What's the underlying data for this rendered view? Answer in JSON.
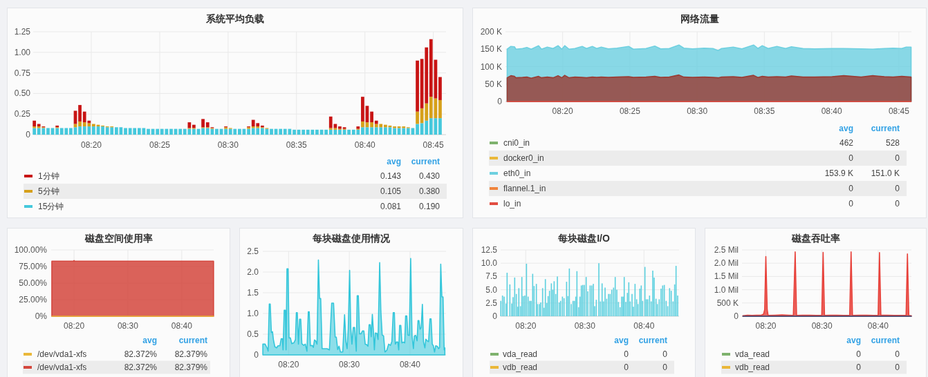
{
  "chart_data": [
    {
      "type": "bar",
      "stacked": true,
      "title": "系统平均负载",
      "xlim": [
        8.2625,
        8.7655
      ],
      "xticks": [
        {
          "value": 8.3333,
          "label": "08:20"
        },
        {
          "value": 8.4167,
          "label": "08:25"
        },
        {
          "value": 8.5,
          "label": "08:30"
        },
        {
          "value": 8.5833,
          "label": "08:35"
        },
        {
          "value": 8.6667,
          "label": "08:40"
        },
        {
          "value": 8.75,
          "label": "08:45"
        }
      ],
      "ylim": [
        0,
        1.25
      ],
      "yticks": [
        0,
        0.25,
        {
          "value": 0.5,
          "label": "0.50"
        },
        0.75,
        {
          "value": 1,
          "label": "1.00"
        },
        1.25
      ],
      "grid": true,
      "legend": "bottom",
      "x": [
        8.2639,
        8.2694,
        8.275,
        8.2806,
        8.2861,
        8.2917,
        8.2972,
        8.3028,
        8.3083,
        8.3139,
        8.3194,
        8.325,
        8.3306,
        8.3361,
        8.3417,
        8.3472,
        8.3528,
        8.3583,
        8.3639,
        8.3694,
        8.375,
        8.3806,
        8.3861,
        8.3917,
        8.3972,
        8.4028,
        8.4083,
        8.4139,
        8.4194,
        8.425,
        8.4306,
        8.4361,
        8.4417,
        8.4472,
        8.4528,
        8.4583,
        8.4639,
        8.4694,
        8.475,
        8.4806,
        8.4861,
        8.4917,
        8.4972,
        8.5028,
        8.5083,
        8.5139,
        8.5194,
        8.525,
        8.5306,
        8.5361,
        8.5417,
        8.5472,
        8.5528,
        8.5583,
        8.5639,
        8.5694,
        8.575,
        8.5806,
        8.5861,
        8.5917,
        8.5972,
        8.6028,
        8.6083,
        8.6139,
        8.6194,
        8.625,
        8.6306,
        8.6361,
        8.6417,
        8.6472,
        8.6528,
        8.6583,
        8.6639,
        8.6694,
        8.675,
        8.6806,
        8.6861,
        8.6917,
        8.6972,
        8.7028,
        8.7083,
        8.7139,
        8.7194,
        8.725,
        8.7306,
        8.7361,
        8.7417,
        8.7472,
        8.7528,
        8.7583
      ],
      "series": [
        {
          "name": "15分钟",
          "color": "#45c8dc",
          "values": [
            0.08,
            0.08,
            0.08,
            0.08,
            0.08,
            0.08,
            0.08,
            0.08,
            0.08,
            0.09,
            0.1,
            0.1,
            0.1,
            0.1,
            0.1,
            0.1,
            0.09,
            0.09,
            0.09,
            0.09,
            0.08,
            0.08,
            0.08,
            0.08,
            0.08,
            0.07,
            0.07,
            0.07,
            0.07,
            0.07,
            0.07,
            0.07,
            0.07,
            0.07,
            0.07,
            0.07,
            0.07,
            0.08,
            0.08,
            0.07,
            0.07,
            0.07,
            0.07,
            0.07,
            0.07,
            0.07,
            0.07,
            0.07,
            0.08,
            0.08,
            0.08,
            0.07,
            0.07,
            0.07,
            0.07,
            0.07,
            0.07,
            0.06,
            0.06,
            0.06,
            0.06,
            0.06,
            0.06,
            0.06,
            0.06,
            0.06,
            0.06,
            0.06,
            0.06,
            0.06,
            0.06,
            0.06,
            0.09,
            0.09,
            0.09,
            0.09,
            0.09,
            0.09,
            0.09,
            0.08,
            0.08,
            0.08,
            0.08,
            0.08,
            0.13,
            0.14,
            0.17,
            0.2,
            0.2,
            0.2
          ]
        },
        {
          "name": "5分钟",
          "color": "#d6a01a",
          "values": [
            0.02,
            0.02,
            0.01,
            null,
            null,
            0.01,
            null,
            null,
            null,
            0.04,
            0.06,
            0.05,
            0.04,
            0.03,
            0.02,
            0.01,
            0.01,
            0.01,
            null,
            null,
            null,
            null,
            null,
            null,
            null,
            null,
            null,
            null,
            null,
            null,
            null,
            null,
            null,
            null,
            0.01,
            0.01,
            null,
            0.01,
            0.01,
            0.01,
            null,
            null,
            0.02,
            0.01,
            null,
            null,
            null,
            0.02,
            0.02,
            0.02,
            0.01,
            0.01,
            null,
            null,
            null,
            null,
            null,
            null,
            null,
            null,
            null,
            null,
            null,
            null,
            null,
            0.02,
            0.02,
            0.01,
            0.01,
            null,
            null,
            0.01,
            0.07,
            0.06,
            0.06,
            0.04,
            0.04,
            0.03,
            0.02,
            0.02,
            0.02,
            0.02,
            0.01,
            null,
            0.15,
            0.18,
            0.21,
            0.26,
            0.24,
            0.22
          ]
        },
        {
          "name": "1分钟",
          "color": "#c81414",
          "values": [
            0.07,
            0.03,
            0.01,
            null,
            null,
            0.02,
            null,
            null,
            null,
            0.16,
            0.2,
            0.13,
            0.03,
            null,
            null,
            null,
            null,
            null,
            null,
            null,
            null,
            null,
            null,
            null,
            null,
            null,
            null,
            null,
            null,
            null,
            null,
            null,
            null,
            null,
            0.07,
            0.04,
            null,
            0.1,
            0.06,
            0.01,
            null,
            null,
            0.01,
            null,
            null,
            null,
            null,
            0.01,
            0.08,
            0.04,
            0.02,
            null,
            null,
            null,
            null,
            null,
            null,
            null,
            null,
            null,
            null,
            null,
            null,
            null,
            null,
            0.14,
            0.05,
            0.03,
            0.02,
            null,
            null,
            0.03,
            0.3,
            0.2,
            0.13,
            0.04,
            null,
            null,
            null,
            null,
            null,
            null,
            null,
            null,
            0.62,
            0.6,
            0.68,
            0.7,
            0.47,
            0.28
          ]
        }
      ],
      "annotations": [
        "avg",
        "current",
        "0.143",
        "0.430",
        "0.105",
        "0.380",
        "0.081",
        "0.190"
      ]
    },
    {
      "type": "area",
      "title": "网络流量",
      "xlim": [
        8.2625,
        8.7655
      ],
      "xticks": [
        {
          "value": 8.3333,
          "label": "08:20"
        },
        {
          "value": 8.4167,
          "label": "08:25"
        },
        {
          "value": 8.5,
          "label": "08:30"
        },
        {
          "value": 8.5833,
          "label": "08:35"
        },
        {
          "value": 8.6667,
          "label": "08:40"
        },
        {
          "value": 8.75,
          "label": "08:45"
        }
      ],
      "ylim": [
        0,
        200000
      ],
      "yticks": [
        0,
        {
          "value": 50000,
          "label": "50 K"
        },
        {
          "value": 100000,
          "label": "100 K"
        },
        {
          "value": 150000,
          "label": "150 K"
        },
        {
          "value": 200000,
          "label": "200 K"
        }
      ],
      "grid": true,
      "legend": "bottom",
      "series": [
        {
          "name": "cni0_in",
          "color": "#7eb26d",
          "type": "line"
        },
        {
          "name": "docker0_in",
          "color": "#eab839",
          "type": "line"
        },
        {
          "name": "eth0_in",
          "color": "#6ed0e0",
          "x": [
            8.2646,
            8.2692,
            8.2736,
            8.2754,
            8.2836,
            8.289,
            8.2944,
            8.3035,
            8.3071,
            8.3143,
            8.3215,
            8.3276,
            8.3323,
            8.3359,
            8.3413,
            8.3485,
            8.3575,
            8.3629,
            8.3701,
            8.3755,
            8.3812,
            8.3899,
            8.4007,
            8.4151,
            8.4209,
            8.4367,
            8.4475,
            8.4547,
            8.4655,
            8.4774,
            8.4835,
            8.4943,
            8.5087,
            8.5195,
            8.526,
            8.5303,
            8.5447,
            8.5555,
            8.5699,
            8.5753,
            8.5807,
            8.588,
            8.5988,
            8.6096,
            8.6168,
            8.6312,
            8.6456,
            8.6672,
            8.6816,
            8.7032,
            8.7176,
            8.732,
            8.7428,
            8.7536,
            8.759,
            8.7651
          ],
          "values": [
            150000,
            158000,
            157000,
            150000,
            152000,
            155000,
            150000,
            160000,
            150000,
            156000,
            152000,
            160000,
            150000,
            160000,
            150000,
            152000,
            158000,
            152000,
            158000,
            152000,
            156000,
            151000,
            153000,
            158000,
            150000,
            152000,
            159000,
            151000,
            152000,
            162000,
            153000,
            151000,
            153000,
            152000,
            146000,
            152000,
            156000,
            151000,
            162000,
            152000,
            160000,
            152000,
            158000,
            152000,
            157000,
            152000,
            151000,
            152000,
            152000,
            151000,
            150000,
            152000,
            153000,
            152000,
            156000,
            156000
          ]
        },
        {
          "name": "flannel.1_in",
          "color": "#ef843c",
          "type": "line"
        },
        {
          "color": "#9a3d35",
          "x": [
            8.2646,
            8.2692,
            8.2736,
            8.2754,
            8.2836,
            8.289,
            8.2944,
            8.3035,
            8.3071,
            8.3143,
            8.3215,
            8.3276,
            8.3323,
            8.3359,
            8.3413,
            8.3485,
            8.3575,
            8.3629,
            8.3701,
            8.3755,
            8.3812,
            8.3899,
            8.4007,
            8.4151,
            8.4209,
            8.4367,
            8.4475,
            8.4547,
            8.4655,
            8.4774,
            8.4835,
            8.4943,
            8.5087,
            8.5195,
            8.526,
            8.5303,
            8.5447,
            8.5555,
            8.5699,
            8.5753,
            8.5807,
            8.588,
            8.5988,
            8.6096,
            8.6168,
            8.6312,
            8.6456,
            8.6672,
            8.6816,
            8.7032,
            8.7176,
            8.732,
            8.7428,
            8.7536,
            8.759,
            8.7651
          ],
          "values": [
            68000,
            74000,
            72000,
            68000,
            69000,
            70000,
            67000,
            72000,
            68000,
            70000,
            68000,
            74000,
            68000,
            75000,
            68000,
            70000,
            69000,
            68000,
            70000,
            69000,
            70000,
            69000,
            70000,
            71000,
            69000,
            70000,
            72000,
            69000,
            70000,
            76000,
            70000,
            69000,
            70000,
            69000,
            68000,
            70000,
            71000,
            69000,
            75000,
            69000,
            72000,
            70000,
            71000,
            70000,
            73000,
            70000,
            70000,
            71000,
            74000,
            70000,
            74000,
            71000,
            70000,
            72000,
            71000,
            70000
          ]
        },
        {
          "name": "lo_in",
          "color": "#e24d42",
          "type": "line",
          "x": [
            8.2646,
            8.7651
          ],
          "values": [
            0,
            0
          ]
        }
      ],
      "annotations": [
        "avg",
        "current",
        "462",
        "528",
        "0",
        "0",
        "153.9 K",
        "151.0 K",
        "0",
        "0",
        "0",
        "0"
      ]
    },
    {
      "type": "area",
      "title": "磁盘空间使用率",
      "xlim": [
        8.2625,
        8.7655
      ],
      "xticks": [
        {
          "value": 8.3333,
          "label": "08:20"
        },
        {
          "value": 8.5,
          "label": "08:30"
        },
        {
          "value": 8.6667,
          "label": "08:40"
        }
      ],
      "ylim": [
        0,
        100
      ],
      "yticks": [
        {
          "value": 0,
          "label": "0%"
        },
        {
          "value": 25,
          "label": "25.00%"
        },
        {
          "value": 50,
          "label": "50.00%"
        },
        {
          "value": 75,
          "label": "75.00%"
        },
        {
          "value": 100,
          "label": "100.00%"
        }
      ],
      "grid": true,
      "legend": "bottom",
      "series": [
        {
          "name": "/dev/vda1-xfs",
          "color": "#eab839",
          "type": "line",
          "x": [
            8.2646,
            8.7651
          ],
          "values": [
            0,
            0
          ]
        },
        {
          "name": "/dev/vda1-xfs",
          "color": "#d4473d",
          "x": [
            8.2646,
            8.3306,
            8.3333,
            8.3361,
            8.7651
          ],
          "values": [
            83,
            83,
            84,
            83,
            83
          ]
        }
      ],
      "annotations": [
        "avg",
        "current",
        "82.372%",
        "82.379%",
        "82.372%",
        "82.379%"
      ]
    },
    {
      "type": "area",
      "title": "每块磁盘使用情况",
      "xlim": [
        8.2625,
        8.7655
      ],
      "xticks": [
        {
          "value": 8.3333,
          "label": "08:20"
        },
        {
          "value": 8.5,
          "label": "08:30"
        },
        {
          "value": 8.6667,
          "label": "08:40"
        }
      ],
      "ylim": [
        0,
        2.5
      ],
      "yticks": [
        0,
        0.5,
        {
          "value": 1,
          "label": "1.0"
        },
        1.5,
        {
          "value": 2,
          "label": "2.0"
        },
        2.5
      ],
      "grid": true,
      "x": [
        8.2627,
        8.269,
        8.2753,
        8.2772,
        8.2804,
        8.2829,
        8.286,
        8.2892,
        8.2917,
        8.2955,
        8.3005,
        8.3043,
        8.3094,
        8.3131,
        8.3163,
        8.3182,
        8.3213,
        8.3245,
        8.3264,
        8.3289,
        8.332,
        8.3346,
        8.3383,
        8.3421,
        8.3478,
        8.3522,
        8.3547,
        8.3572,
        8.3604,
        8.3635,
        8.3667,
        8.3698,
        8.3749,
        8.3793,
        8.3837,
        8.3875,
        8.39,
        8.3932,
        8.3982,
        8.4013,
        8.4045,
        8.4076,
        8.4114,
        8.4152,
        8.4184,
        8.4215,
        8.4253,
        8.4328,
        8.4391,
        8.4454,
        8.4517,
        8.4568,
        8.4612,
        8.4643,
        8.4681,
        8.4719,
        8.4757,
        8.482,
        8.487,
        8.4908,
        8.494,
        8.4971,
        8.5009,
        8.504,
        8.5072,
        8.511,
        8.5147,
        8.5192,
        8.5217,
        8.5248,
        8.528,
        8.5324,
        8.5362,
        8.5399,
        8.5437,
        8.5475,
        8.5513,
        8.5544,
        8.5576,
        8.5601,
        8.5633,
        8.5664,
        8.5689,
        8.5714,
        8.5759,
        8.579,
        8.5834,
        8.5866,
        8.5903,
        8.5941,
        8.5979,
        8.6029,
        8.608,
        8.613,
        8.6168,
        8.6206,
        8.6237,
        8.6263,
        8.6294,
        8.6332,
        8.6357,
        8.6382,
        8.6414,
        8.6445,
        8.6483,
        8.6521,
        8.6546,
        8.6578,
        8.6609,
        8.6647,
        8.6685,
        8.6722,
        8.676,
        8.6785,
        8.6823,
        8.6861,
        8.6886,
        8.6911,
        8.6943,
        8.6974,
        8.7006,
        8.7037,
        8.7075,
        8.71,
        8.7138,
        8.7176,
        8.7214,
        8.7245,
        8.7277,
        8.7308,
        8.734,
        8.7371,
        8.7415,
        8.7453,
        8.7478,
        8.751,
        8.7541,
        8.7573,
        8.7604,
        8.7623
      ],
      "series": [
        {
          "color": "#33c6da",
          "values": [
            0.26,
            0.26,
            0.15,
            0.09,
            1.23,
            1.23,
            0.54,
            0.56,
            0.37,
            0.2,
            0.17,
            0.22,
            0.22,
            0.39,
            0.39,
            0.12,
            1.08,
            1.08,
            0.12,
            2.08,
            2.08,
            0.41,
            0.41,
            0.27,
            0.29,
            0.37,
            1.02,
            1.02,
            0.26,
            0.86,
            0.86,
            0.27,
            0.23,
            0.26,
            0.09,
            1.04,
            1.04,
            0.22,
            0.23,
            0.18,
            0.36,
            0.34,
            0.26,
            2.29,
            1.36,
            1.36,
            0.15,
            0.15,
            0.15,
            0.12,
            1.25,
            1.25,
            0.43,
            0.43,
            0.13,
            0.21,
            0.07,
            0.07,
            0.97,
            0.32,
            0.15,
            0.62,
            2.04,
            0.66,
            0.26,
            0.66,
            0.66,
            0.09,
            1.43,
            1.43,
            0.51,
            0.51,
            0.58,
            0.58,
            0.26,
            0.25,
            0.21,
            0.73,
            0.73,
            0.44,
            0.98,
            0.54,
            0.12,
            0.53,
            0.52,
            0.37,
            2.23,
            1.06,
            0.48,
            0.46,
            0.07,
            0.11,
            0.26,
            0.23,
            0.32,
            1.02,
            1.02,
            0.26,
            0.31,
            0.31,
            0.12,
            0.71,
            0.71,
            0.29,
            0.31,
            0.29,
            0.94,
            0.94,
            0.48,
            0.47,
            2.33,
            0.46,
            0.15,
            0.46,
            0.47,
            0.34,
            0.83,
            0.83,
            0.62,
            0.66,
            1.22,
            0.32,
            0.17,
            0.38,
            0.34,
            0.32,
            0.87,
            0.87,
            0.26,
            0.22,
            0.07,
            0.22,
            0.21,
            0.15,
            0.18,
            2.19,
            1.4,
            1.4,
            0.12,
            0.17
          ]
        }
      ]
    },
    {
      "type": "bar",
      "title": "每块磁盘I/O",
      "xlim": [
        8.2625,
        8.7655
      ],
      "xticks": [
        {
          "value": 8.3333,
          "label": "08:20"
        },
        {
          "value": 8.5,
          "label": "08:30"
        },
        {
          "value": 8.6667,
          "label": "08:40"
        }
      ],
      "ylim": [
        0,
        12.5
      ],
      "yticks": [
        0,
        2.5,
        {
          "value": 5,
          "label": "5.0"
        },
        7.5,
        {
          "value": 10,
          "label": "10.0"
        },
        12.5
      ],
      "grid": true,
      "legend": "bottom",
      "series": [
        {
          "name": "vda_read",
          "color": "#7eb26d"
        },
        {
          "name": "vdb_read",
          "color": "#eab839"
        },
        {
          "color": "#5dd0df",
          "x": [
            8.263,
            8.2677,
            8.2722,
            8.2775,
            8.2807,
            8.2885,
            8.2937,
            8.2976,
            8.3021,
            8.3067,
            8.3106,
            8.3138,
            8.3184,
            8.3223,
            8.3262,
            8.3307,
            8.3353,
            8.3399,
            8.3444,
            8.3483,
            8.3528,
            8.3567,
            8.3632,
            8.3665,
            8.3717,
            8.3756,
            8.3808,
            8.3847,
            8.3886,
            8.3925,
            8.3964,
            8.4003,
            8.4055,
            8.4094,
            8.4133,
            8.4178,
            8.4224,
            8.4276,
            8.4315,
            8.4367,
            8.4412,
            8.4484,
            8.4523,
            8.4562,
            8.4614,
            8.4666,
            8.4705,
            8.4744,
            8.4776,
            8.4822,
            8.4861,
            8.49,
            8.4939,
            8.4984,
            8.5036,
            8.5082,
            8.5147,
            8.5192,
            8.5238,
            8.5277,
            8.5322,
            8.5394,
            8.5439,
            8.5485,
            8.5524,
            8.5569,
            8.5615,
            8.5667,
            8.5712,
            8.5758,
            8.5809,
            8.5855,
            8.59,
            8.5946,
            8.5992,
            8.6037,
            8.6076,
            8.6109,
            8.6154,
            8.6199,
            8.6238,
            8.6277,
            8.6329,
            8.6368,
            8.6414,
            8.6459,
            8.6498,
            8.655,
            8.6589,
            8.6628,
            8.6693,
            8.6732,
            8.6771,
            8.6823,
            8.6869,
            8.6914,
            8.6953,
            8.7005,
            8.7044,
            8.7096,
            8.7148,
            8.7193,
            8.7239,
            8.7291,
            8.7336,
            8.7388,
            8.7434,
            8.7486,
            8.7531,
            8.757,
            8.7616
          ],
          "values": [
            2.9,
            3.9,
            3.7,
            2.4,
            8.2,
            6.0,
            2.4,
            3.6,
            7.3,
            4.2,
            1.8,
            5.3,
            1.9,
            7.4,
            3.8,
            3.9,
            9.9,
            3.7,
            2.9,
            2.9,
            8.0,
            5.7,
            6.1,
            2.3,
            2.3,
            2.6,
            5.3,
            1.6,
            7.0,
            2.5,
            3.8,
            4.8,
            6.2,
            5.0,
            6.6,
            4.2,
            7.5,
            2.6,
            2.9,
            3.7,
            3.4,
            6.5,
            3.8,
            9.0,
            2.3,
            2.9,
            2.9,
            3.7,
            8.5,
            1.7,
            3.7,
            5.8,
            5.9,
            5.9,
            7.4,
            4.7,
            5.8,
            5.8,
            6.1,
            1.9,
            3.1,
            10.0,
            2.8,
            6.2,
            2.8,
            5.4,
            3.3,
            4.2,
            4.2,
            5.0,
            5.4,
            7.4,
            5.0,
            2.7,
            1.7,
            3.7,
            3.7,
            7.4,
            2.7,
            4.4,
            6.4,
            2.8,
            4.2,
            1.8,
            6.1,
            3.2,
            2.3,
            5.2,
            5.8,
            2.9,
            9.3,
            3.2,
            3.2,
            3.9,
            2.8,
            8.6,
            7.3,
            3.3,
            2.3,
            3.2,
            5.2,
            5.8,
            5.9,
            2.9,
            1.9,
            5.3,
            4.8,
            2.8,
            6.0,
            9.5,
            3.9
          ]
        }
      ],
      "annotations": [
        "avg",
        "current",
        "0",
        "0",
        "0",
        "0"
      ]
    },
    {
      "type": "area",
      "title": "磁盘吞吐率",
      "xlim": [
        8.2625,
        8.7655
      ],
      "xticks": [
        {
          "value": 8.3333,
          "label": "08:20"
        },
        {
          "value": 8.5,
          "label": "08:30"
        },
        {
          "value": 8.6667,
          "label": "08:40"
        }
      ],
      "ylim": [
        0,
        2.5
      ],
      "yticks": [
        0,
        {
          "value": 0.5,
          "label": "500 K"
        },
        {
          "value": 1,
          "label": "1.0 Mil"
        },
        {
          "value": 1.5,
          "label": "1.5 Mil"
        },
        {
          "value": 2,
          "label": "2.0 Mil"
        },
        {
          "value": 2.5,
          "label": "2.5 Mil"
        }
      ],
      "grid": true,
      "legend": "bottom",
      "series": [
        {
          "name": "vda_read",
          "color": "#7eb26d",
          "type": "line"
        },
        {
          "name": "vdb_read",
          "color": "#eab839",
          "type": "line"
        },
        {
          "color": "#e8413a",
          "x": [
            8.2653,
            8.2789,
            8.2925,
            8.3061,
            8.3197,
            8.3265,
            8.3299,
            8.3333,
            8.3374,
            8.3401,
            8.3605,
            8.381,
            8.4014,
            8.415,
            8.4204,
            8.4245,
            8.4422,
            8.4626,
            8.483,
            8.4993,
            8.5034,
            8.5075,
            8.5238,
            8.5442,
            8.5646,
            8.5823,
            8.5864,
            8.5905,
            8.6122,
            8.6327,
            8.6531,
            8.6667,
            8.6707,
            8.6748,
            8.6939,
            8.7143,
            8.7347,
            8.7497,
            8.7537,
            8.7578,
            8.7653
          ],
          "values": [
            0.02,
            0.04,
            0.03,
            0.04,
            0.04,
            0.08,
            0.25,
            2.25,
            0.25,
            0.03,
            0.04,
            0.05,
            0.04,
            0.03,
            2.43,
            0.03,
            0.04,
            0.04,
            0.03,
            0.03,
            2.41,
            0.03,
            0.04,
            0.04,
            0.03,
            0.03,
            2.43,
            0.03,
            0.04,
            0.04,
            0.03,
            0.03,
            2.4,
            0.04,
            0.04,
            0.03,
            0.03,
            0.03,
            2.35,
            0.03,
            0.02
          ]
        },
        {
          "color": "#2d4e7e",
          "type": "line",
          "x": [
            8.2653,
            8.7653
          ],
          "values": [
            0,
            0
          ]
        }
      ],
      "annotations": [
        "avg",
        "current",
        "0",
        "0",
        "0",
        "0"
      ]
    }
  ]
}
